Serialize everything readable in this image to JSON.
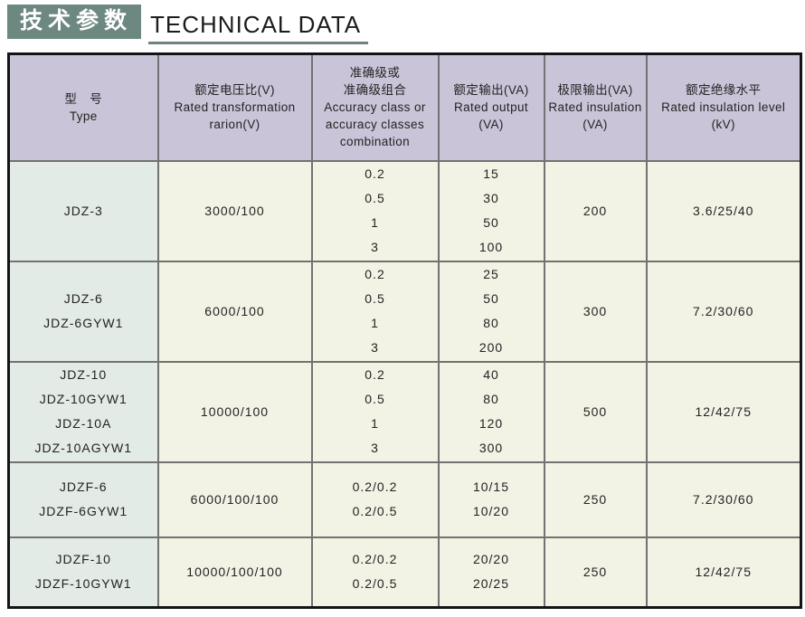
{
  "title": {
    "zh": "技术参数",
    "en": "TECHNICAL DATA"
  },
  "colors": {
    "banner": "#6d8781",
    "underline": "#6f837d",
    "header-bg": "#c9c4d8",
    "type-bg": "#e2ebe6",
    "cell-bg": "#f2f2e5",
    "grid": "#727272"
  },
  "table": {
    "headers": [
      {
        "lines": [
          "型　号",
          "Type"
        ]
      },
      {
        "lines": [
          "额定电压比(V)",
          "Rated transformation",
          "rarion(V)"
        ]
      },
      {
        "lines": [
          "准确级或",
          "准确级组合",
          "Accuracy class or",
          "accuracy classes",
          "combination"
        ]
      },
      {
        "lines": [
          "额定输出(VA)",
          "Rated output",
          "(VA)"
        ]
      },
      {
        "lines": [
          "极限输出(VA)",
          "Rated insulation",
          "(VA)"
        ]
      },
      {
        "lines": [
          "额定绝缘水平",
          "Rated insulation level",
          "(kV)"
        ]
      }
    ],
    "rows": [
      {
        "cells": [
          [
            "JDZ-3"
          ],
          [
            "3000/100"
          ],
          [
            "0.2",
            "0.5",
            "1",
            "3"
          ],
          [
            "15",
            "30",
            "50",
            "100"
          ],
          [
            "200"
          ],
          [
            "3.6/25/40"
          ]
        ]
      },
      {
        "cells": [
          [
            "JDZ-6",
            "JDZ-6GYW1"
          ],
          [
            "6000/100"
          ],
          [
            "0.2",
            "0.5",
            "1",
            "3"
          ],
          [
            "25",
            "50",
            "80",
            "200"
          ],
          [
            "300"
          ],
          [
            "7.2/30/60"
          ]
        ]
      },
      {
        "cells": [
          [
            "JDZ-10",
            "JDZ-10GYW1",
            "JDZ-10A",
            "JDZ-10AGYW1"
          ],
          [
            "10000/100"
          ],
          [
            "0.2",
            "0.5",
            "1",
            "3"
          ],
          [
            "40",
            "80",
            "120",
            "300"
          ],
          [
            "500"
          ],
          [
            "12/42/75"
          ]
        ]
      },
      {
        "cells": [
          [
            "JDZF-6",
            "JDZF-6GYW1"
          ],
          [
            "6000/100/100"
          ],
          [
            "0.2/0.2",
            "0.2/0.5"
          ],
          [
            "10/15",
            "10/20"
          ],
          [
            "250"
          ],
          [
            "7.2/30/60"
          ]
        ]
      },
      {
        "cells": [
          [
            "JDZF-10",
            "JDZF-10GYW1"
          ],
          [
            "10000/100/100"
          ],
          [
            "0.2/0.2",
            "0.2/0.5"
          ],
          [
            "20/20",
            "20/25"
          ],
          [
            "250"
          ],
          [
            "12/42/75"
          ]
        ]
      }
    ]
  }
}
